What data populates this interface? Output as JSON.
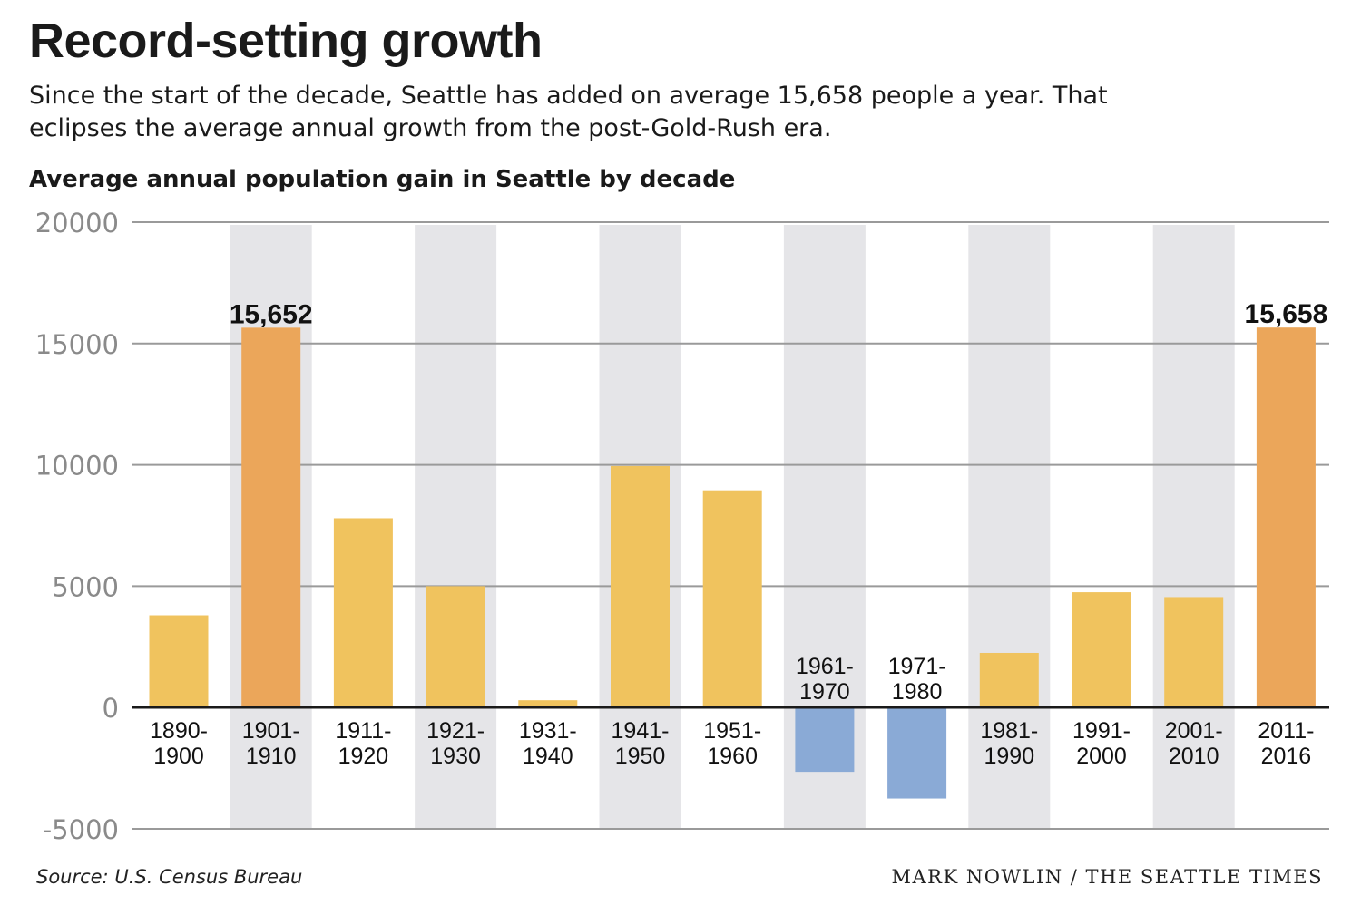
{
  "header": {
    "title": "Record-setting growth",
    "subtitle": "Since the start of the decade, Seattle has added on average 15,658 people a year. That eclipses the average annual growth from the post-Gold-Rush era."
  },
  "footer": {
    "source": "Source: U.S. Census Bureau",
    "credit": "MARK NOWLIN / THE SEATTLE TIMES"
  },
  "colors": {
    "bar_default": "#f0c35e",
    "bar_highlight": "#eba65a",
    "bar_negative": "#8aaad6",
    "band": "#e5e5e8",
    "grid": "#9a9a9a",
    "axis": "#1a1a1a",
    "tick_text": "#8a8a8a"
  },
  "chart_data": {
    "type": "bar",
    "title": "Average annual population gain in Seattle by decade",
    "xlabel": "",
    "ylabel": "",
    "ylim": [
      -5000,
      20000
    ],
    "yticks": [
      20000,
      15000,
      10000,
      5000,
      0,
      -5000
    ],
    "grid": true,
    "categories": [
      [
        "1890-",
        "1900"
      ],
      [
        "1901-",
        "1910"
      ],
      [
        "1911-",
        "1920"
      ],
      [
        "1921-",
        "1930"
      ],
      [
        "1931-",
        "1940"
      ],
      [
        "1941-",
        "1950"
      ],
      [
        "1951-",
        "1960"
      ],
      [
        "1961-",
        "1970"
      ],
      [
        "1971-",
        "1980"
      ],
      [
        "1981-",
        "1990"
      ],
      [
        "1991-",
        "2000"
      ],
      [
        "2001-",
        "2010"
      ],
      [
        "2011-",
        "2016"
      ]
    ],
    "values": [
      3800,
      15652,
      7800,
      5000,
      300,
      9950,
      8950,
      -2650,
      -3750,
      2250,
      4750,
      4550,
      15658
    ],
    "highlighted": [
      1,
      12
    ],
    "data_labels": [
      {
        "index": 1,
        "text": "15,652"
      },
      {
        "index": 12,
        "text": "15,658"
      }
    ]
  }
}
